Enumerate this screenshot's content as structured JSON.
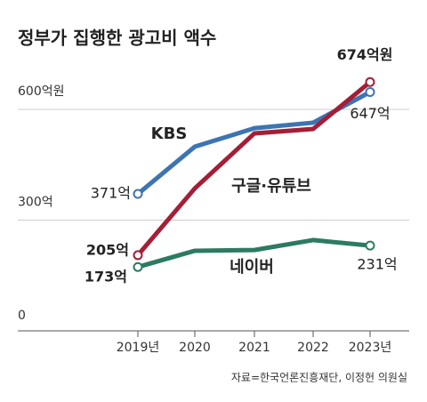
{
  "chart_data": {
    "type": "line",
    "title": "정부가 집행한 광고비 액수",
    "categories": [
      "2019년",
      "2020",
      "2021",
      "2022",
      "2023년"
    ],
    "series": [
      {
        "name": "KBS",
        "color": "#3d74b2",
        "values": [
          371,
          499,
          549,
          564,
          647
        ],
        "value_labels": [
          "371억",
          null,
          null,
          null,
          "647억"
        ]
      },
      {
        "name": "구글·유튜브",
        "color": "#a51e36",
        "values": [
          205,
          386,
          535,
          547,
          674
        ],
        "value_labels": [
          "205억",
          null,
          null,
          null,
          "674억원"
        ]
      },
      {
        "name": "네이버",
        "color": "#2c7a62",
        "values": [
          173,
          217,
          219,
          246,
          231
        ],
        "value_labels": [
          "173억",
          null,
          null,
          null,
          "231억"
        ]
      }
    ],
    "ylim": [
      0,
      700
    ],
    "yticks": [
      0,
      {
        "value": 300,
        "label": "300억"
      },
      {
        "value": 600,
        "label": "600억원"
      }
    ],
    "grid": true,
    "source": "자료=한국언론진흥재단, 이정헌 의원실"
  }
}
